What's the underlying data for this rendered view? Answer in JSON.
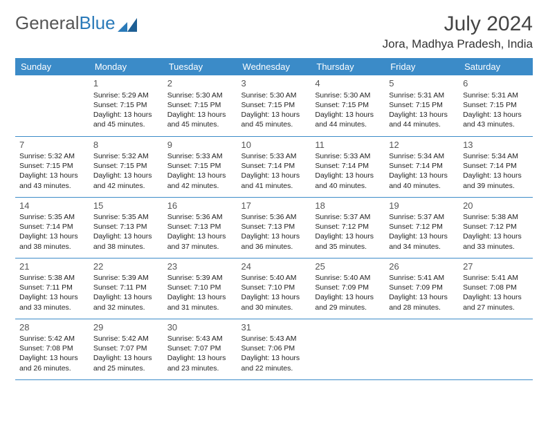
{
  "brand": {
    "part1": "General",
    "part2": "Blue"
  },
  "colors": {
    "header_bg": "#3b8bc8",
    "header_text": "#ffffff",
    "row_divider": "#3b8bc8",
    "brand_gray": "#555555",
    "brand_blue": "#2a7ab9",
    "text": "#222222",
    "background": "#ffffff"
  },
  "title": "July 2024",
  "location": "Jora, Madhya Pradesh, India",
  "day_headers": [
    "Sunday",
    "Monday",
    "Tuesday",
    "Wednesday",
    "Thursday",
    "Friday",
    "Saturday"
  ],
  "weeks": [
    [
      null,
      {
        "n": "1",
        "sr": "Sunrise: 5:29 AM",
        "ss": "Sunset: 7:15 PM",
        "d1": "Daylight: 13 hours",
        "d2": "and 45 minutes."
      },
      {
        "n": "2",
        "sr": "Sunrise: 5:30 AM",
        "ss": "Sunset: 7:15 PM",
        "d1": "Daylight: 13 hours",
        "d2": "and 45 minutes."
      },
      {
        "n": "3",
        "sr": "Sunrise: 5:30 AM",
        "ss": "Sunset: 7:15 PM",
        "d1": "Daylight: 13 hours",
        "d2": "and 45 minutes."
      },
      {
        "n": "4",
        "sr": "Sunrise: 5:30 AM",
        "ss": "Sunset: 7:15 PM",
        "d1": "Daylight: 13 hours",
        "d2": "and 44 minutes."
      },
      {
        "n": "5",
        "sr": "Sunrise: 5:31 AM",
        "ss": "Sunset: 7:15 PM",
        "d1": "Daylight: 13 hours",
        "d2": "and 44 minutes."
      },
      {
        "n": "6",
        "sr": "Sunrise: 5:31 AM",
        "ss": "Sunset: 7:15 PM",
        "d1": "Daylight: 13 hours",
        "d2": "and 43 minutes."
      }
    ],
    [
      {
        "n": "7",
        "sr": "Sunrise: 5:32 AM",
        "ss": "Sunset: 7:15 PM",
        "d1": "Daylight: 13 hours",
        "d2": "and 43 minutes."
      },
      {
        "n": "8",
        "sr": "Sunrise: 5:32 AM",
        "ss": "Sunset: 7:15 PM",
        "d1": "Daylight: 13 hours",
        "d2": "and 42 minutes."
      },
      {
        "n": "9",
        "sr": "Sunrise: 5:33 AM",
        "ss": "Sunset: 7:15 PM",
        "d1": "Daylight: 13 hours",
        "d2": "and 42 minutes."
      },
      {
        "n": "10",
        "sr": "Sunrise: 5:33 AM",
        "ss": "Sunset: 7:14 PM",
        "d1": "Daylight: 13 hours",
        "d2": "and 41 minutes."
      },
      {
        "n": "11",
        "sr": "Sunrise: 5:33 AM",
        "ss": "Sunset: 7:14 PM",
        "d1": "Daylight: 13 hours",
        "d2": "and 40 minutes."
      },
      {
        "n": "12",
        "sr": "Sunrise: 5:34 AM",
        "ss": "Sunset: 7:14 PM",
        "d1": "Daylight: 13 hours",
        "d2": "and 40 minutes."
      },
      {
        "n": "13",
        "sr": "Sunrise: 5:34 AM",
        "ss": "Sunset: 7:14 PM",
        "d1": "Daylight: 13 hours",
        "d2": "and 39 minutes."
      }
    ],
    [
      {
        "n": "14",
        "sr": "Sunrise: 5:35 AM",
        "ss": "Sunset: 7:14 PM",
        "d1": "Daylight: 13 hours",
        "d2": "and 38 minutes."
      },
      {
        "n": "15",
        "sr": "Sunrise: 5:35 AM",
        "ss": "Sunset: 7:13 PM",
        "d1": "Daylight: 13 hours",
        "d2": "and 38 minutes."
      },
      {
        "n": "16",
        "sr": "Sunrise: 5:36 AM",
        "ss": "Sunset: 7:13 PM",
        "d1": "Daylight: 13 hours",
        "d2": "and 37 minutes."
      },
      {
        "n": "17",
        "sr": "Sunrise: 5:36 AM",
        "ss": "Sunset: 7:13 PM",
        "d1": "Daylight: 13 hours",
        "d2": "and 36 minutes."
      },
      {
        "n": "18",
        "sr": "Sunrise: 5:37 AM",
        "ss": "Sunset: 7:12 PM",
        "d1": "Daylight: 13 hours",
        "d2": "and 35 minutes."
      },
      {
        "n": "19",
        "sr": "Sunrise: 5:37 AM",
        "ss": "Sunset: 7:12 PM",
        "d1": "Daylight: 13 hours",
        "d2": "and 34 minutes."
      },
      {
        "n": "20",
        "sr": "Sunrise: 5:38 AM",
        "ss": "Sunset: 7:12 PM",
        "d1": "Daylight: 13 hours",
        "d2": "and 33 minutes."
      }
    ],
    [
      {
        "n": "21",
        "sr": "Sunrise: 5:38 AM",
        "ss": "Sunset: 7:11 PM",
        "d1": "Daylight: 13 hours",
        "d2": "and 33 minutes."
      },
      {
        "n": "22",
        "sr": "Sunrise: 5:39 AM",
        "ss": "Sunset: 7:11 PM",
        "d1": "Daylight: 13 hours",
        "d2": "and 32 minutes."
      },
      {
        "n": "23",
        "sr": "Sunrise: 5:39 AM",
        "ss": "Sunset: 7:10 PM",
        "d1": "Daylight: 13 hours",
        "d2": "and 31 minutes."
      },
      {
        "n": "24",
        "sr": "Sunrise: 5:40 AM",
        "ss": "Sunset: 7:10 PM",
        "d1": "Daylight: 13 hours",
        "d2": "and 30 minutes."
      },
      {
        "n": "25",
        "sr": "Sunrise: 5:40 AM",
        "ss": "Sunset: 7:09 PM",
        "d1": "Daylight: 13 hours",
        "d2": "and 29 minutes."
      },
      {
        "n": "26",
        "sr": "Sunrise: 5:41 AM",
        "ss": "Sunset: 7:09 PM",
        "d1": "Daylight: 13 hours",
        "d2": "and 28 minutes."
      },
      {
        "n": "27",
        "sr": "Sunrise: 5:41 AM",
        "ss": "Sunset: 7:08 PM",
        "d1": "Daylight: 13 hours",
        "d2": "and 27 minutes."
      }
    ],
    [
      {
        "n": "28",
        "sr": "Sunrise: 5:42 AM",
        "ss": "Sunset: 7:08 PM",
        "d1": "Daylight: 13 hours",
        "d2": "and 26 minutes."
      },
      {
        "n": "29",
        "sr": "Sunrise: 5:42 AM",
        "ss": "Sunset: 7:07 PM",
        "d1": "Daylight: 13 hours",
        "d2": "and 25 minutes."
      },
      {
        "n": "30",
        "sr": "Sunrise: 5:43 AM",
        "ss": "Sunset: 7:07 PM",
        "d1": "Daylight: 13 hours",
        "d2": "and 23 minutes."
      },
      {
        "n": "31",
        "sr": "Sunrise: 5:43 AM",
        "ss": "Sunset: 7:06 PM",
        "d1": "Daylight: 13 hours",
        "d2": "and 22 minutes."
      },
      null,
      null,
      null
    ]
  ]
}
